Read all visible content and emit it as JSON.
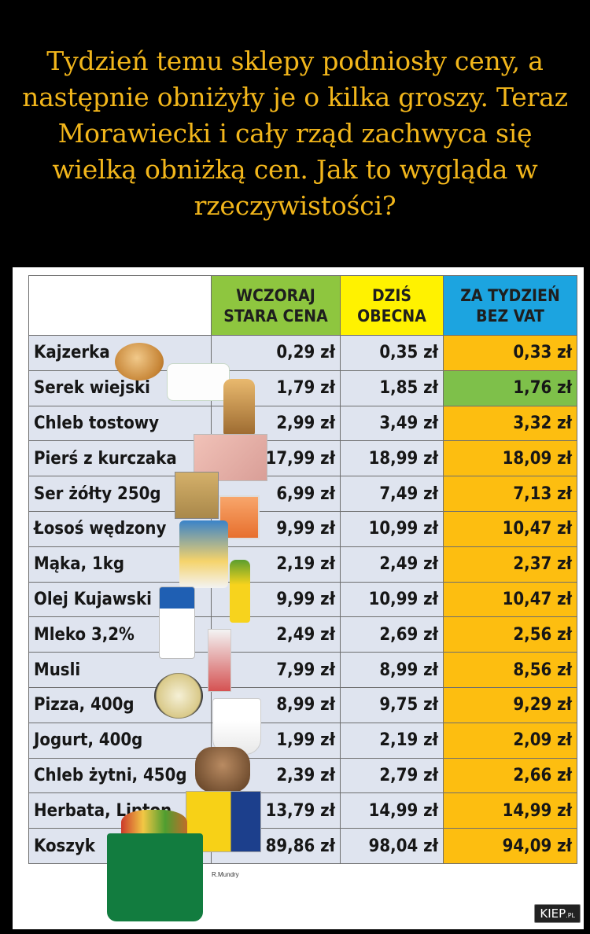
{
  "caption": "Tydzień temu sklepy podniosły ceny, a następnie obniżyły je o kilka groszy. Teraz Morawiecki i cały rząd zachwyca się wielką obniżką cen. Jak to wygląda w rzeczywistości?",
  "table": {
    "headers": {
      "old": [
        "WCZORAJ",
        "STARA CENA"
      ],
      "now": [
        "DZIŚ",
        "OBECNA"
      ],
      "next": [
        "ZA TYDZIEŃ",
        "BEZ VAT"
      ]
    },
    "rows": [
      {
        "name": "Kajzerka",
        "old": "0,29 zł",
        "now": "0,35 zł",
        "next": "0,33 zł"
      },
      {
        "name": "Serek wiejski",
        "old": "1,79 zł",
        "now": "1,85 zł",
        "next": "1,76 zł"
      },
      {
        "name": "Chleb tostowy",
        "old": "2,99 zł",
        "now": "3,49 zł",
        "next": "3,32 zł"
      },
      {
        "name": "Pierś z kurczaka",
        "old": "17,99 zł",
        "now": "18,99 zł",
        "next": "18,09 zł"
      },
      {
        "name": "Ser żółty 250g",
        "old": "6,99 zł",
        "now": "7,49 zł",
        "next": "7,13 zł"
      },
      {
        "name": "Łosoś wędzony",
        "old": "9,99 zł",
        "now": "10,99 zł",
        "next": "10,47 zł"
      },
      {
        "name": "Mąka, 1kg",
        "old": "2,19 zł",
        "now": "2,49 zł",
        "next": "2,37 zł"
      },
      {
        "name": "Olej Kujawski",
        "old": "9,99 zł",
        "now": "10,99 zł",
        "next": "10,47 zł"
      },
      {
        "name": "Mleko 3,2%",
        "old": "2,49 zł",
        "now": "2,69 zł",
        "next": "2,56 zł"
      },
      {
        "name": "Musli",
        "old": "7,99 zł",
        "now": "8,99 zł",
        "next": "8,56 zł"
      },
      {
        "name": "Pizza, 400g",
        "old": "8,99 zł",
        "now": "9,75 zł",
        "next": "9,29 zł"
      },
      {
        "name": "Jogurt, 400g",
        "old": "1,99 zł",
        "now": "2,19 zł",
        "next": "2,09 zł"
      },
      {
        "name": "Chleb żytni, 450g",
        "old": "2,39 zł",
        "now": "2,79 zł",
        "next": "2,66 zł"
      },
      {
        "name": "Herbata, Lipton",
        "old": "13,79 zł",
        "now": "14,99 zł",
        "next": "14,99 zł"
      },
      {
        "name": "Koszyk",
        "old": "89,86 zł",
        "now": "98,04 zł",
        "next": "94,09 zł"
      }
    ],
    "highlight_row_next": 1,
    "colors": {
      "old_header": "#8ec63f",
      "now_header": "#fff200",
      "next_header": "#1ca4e0",
      "next_column": "#fdbe10",
      "highlight": "#7ec04a",
      "row_bg": "#dfe4ef",
      "caption_text": "#f2b61b"
    }
  },
  "credit": "R.Mundry",
  "logo": {
    "main": "KIEP",
    "suffix": ".PL"
  }
}
